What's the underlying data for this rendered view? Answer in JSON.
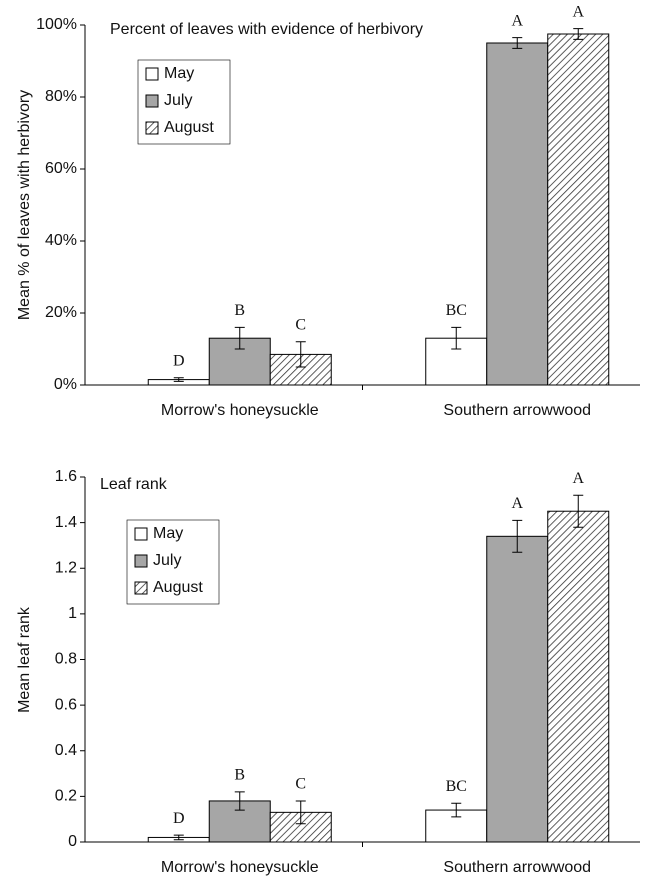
{
  "chart_data": [
    {
      "type": "bar",
      "title": "Percent of leaves with evidence of herbivory",
      "ylabel": "Mean % of leaves with herbivory",
      "categories": [
        "Morrow's honeysuckle",
        "Southern arrowwood"
      ],
      "series": [
        {
          "name": "May",
          "color": "#ffffff",
          "values": [
            1.5,
            13
          ],
          "errors": [
            0.5,
            3
          ],
          "letters": [
            "D",
            "BC"
          ]
        },
        {
          "name": "July",
          "color": "#a6a6a6",
          "values": [
            13,
            95
          ],
          "errors": [
            3,
            1.5
          ],
          "letters": [
            "B",
            "A"
          ]
        },
        {
          "name": "August",
          "color": "#ffffff",
          "pattern": "diagonal",
          "values": [
            8.5,
            97.5
          ],
          "errors": [
            3.5,
            1.5
          ],
          "letters": [
            "C",
            "A"
          ]
        }
      ],
      "ylim": [
        0,
        100
      ],
      "yticks": [
        {
          "value": 0,
          "label": "0%"
        },
        {
          "value": 20,
          "label": "20%"
        },
        {
          "value": 40,
          "label": "40%"
        },
        {
          "value": 60,
          "label": "60%"
        },
        {
          "value": 80,
          "label": "80%"
        },
        {
          "value": 100,
          "label": "100%"
        }
      ],
      "grid": false,
      "legend": "upper left"
    },
    {
      "type": "bar",
      "title": "Leaf rank",
      "ylabel": "Mean leaf rank",
      "categories": [
        "Morrow's honeysuckle",
        "Southern arrowwood"
      ],
      "series": [
        {
          "name": "May",
          "color": "#ffffff",
          "values": [
            0.02,
            0.14
          ],
          "errors": [
            0.01,
            0.03
          ],
          "letters": [
            "D",
            "BC"
          ]
        },
        {
          "name": "July",
          "color": "#a6a6a6",
          "values": [
            0.18,
            1.34
          ],
          "errors": [
            0.04,
            0.07
          ],
          "letters": [
            "B",
            "A"
          ]
        },
        {
          "name": "August",
          "color": "#ffffff",
          "pattern": "diagonal",
          "values": [
            0.13,
            1.45
          ],
          "errors": [
            0.05,
            0.07
          ],
          "letters": [
            "C",
            "A"
          ]
        }
      ],
      "ylim": [
        0,
        1.6
      ],
      "yticks": [
        0,
        0.2,
        0.4,
        0.6,
        0.8,
        1,
        1.2,
        1.4,
        1.6
      ],
      "grid": false,
      "legend": "upper left"
    }
  ]
}
